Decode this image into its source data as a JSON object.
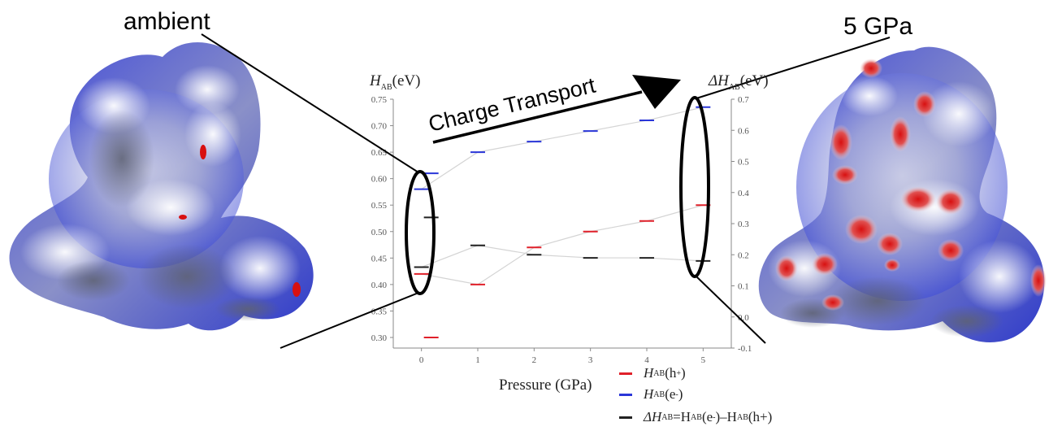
{
  "labels": {
    "left_caption": "ambient",
    "right_caption": "5 GPa",
    "arrow_text": "Charge Transport"
  },
  "colors": {
    "hole": "#e0202a",
    "electron": "#2a36d8",
    "delta": "#222222",
    "surface_blue": "#3440d8",
    "surface_red": "#e01c1c"
  },
  "chart_data": {
    "type": "scatter",
    "x": [
      0,
      1,
      2,
      3,
      4,
      5
    ],
    "xlabel": "Pressure (GPa)",
    "xlim": [
      -0.5,
      5.5
    ],
    "xticks": [
      "0",
      "1",
      "2",
      "3",
      "4",
      "5"
    ],
    "ylabel_left": {
      "main": "H",
      "sub": "AB",
      "rest": "(eV)"
    },
    "ylim_left": [
      0.28,
      0.75
    ],
    "yticks_left": [
      "0.30",
      "0.35",
      "0.40",
      "0.45",
      "0.50",
      "0.55",
      "0.60",
      "0.65",
      "0.70",
      "0.75"
    ],
    "ylabel_right": {
      "main": "ΔH",
      "sub": "AB",
      "rest": "(eV)"
    },
    "ylim_right": [
      -0.1,
      0.7
    ],
    "yticks_right": [
      "-0.1",
      "0.0",
      "0.1",
      "0.2",
      "0.3",
      "0.4",
      "0.5",
      "0.6",
      "0.7"
    ],
    "series": [
      {
        "name": "H_AB(h+)",
        "axis": "left",
        "color": "#e0202a",
        "values": [
          0.42,
          0.4,
          0.47,
          0.5,
          0.52,
          0.55
        ]
      },
      {
        "name": "H_AB(e-)",
        "axis": "left",
        "color": "#2a36d8",
        "values": [
          0.58,
          0.65,
          0.67,
          0.69,
          0.71,
          0.735
        ]
      },
      {
        "name": "ΔH_AB=H_AB(e-)–H_AB(h+)",
        "axis": "right",
        "color": "#222222",
        "values": [
          0.16,
          0.23,
          0.2,
          0.19,
          0.19,
          0.18
        ]
      }
    ],
    "ambient_split_markers": [
      {
        "axis": "left",
        "color": "#e0202a",
        "value": 0.3
      },
      {
        "axis": "left",
        "color": "#2a36d8",
        "value": 0.61
      },
      {
        "axis": "right",
        "color": "#222222",
        "value": 0.32
      }
    ],
    "legend": [
      {
        "main": "H",
        "sub": "AB",
        "text": "(h",
        "sup": "+",
        "end": ")"
      },
      {
        "main": "H",
        "sub": "AB",
        "text": "(e",
        "sup": "-",
        "end": ")"
      },
      {
        "main": "ΔH",
        "sub": "AB",
        "text": "=H",
        "text2": "AB",
        "text3": "(e",
        "sup": "-",
        "end": ")–H",
        "text4": "AB",
        "end2": "(h+)"
      }
    ]
  }
}
